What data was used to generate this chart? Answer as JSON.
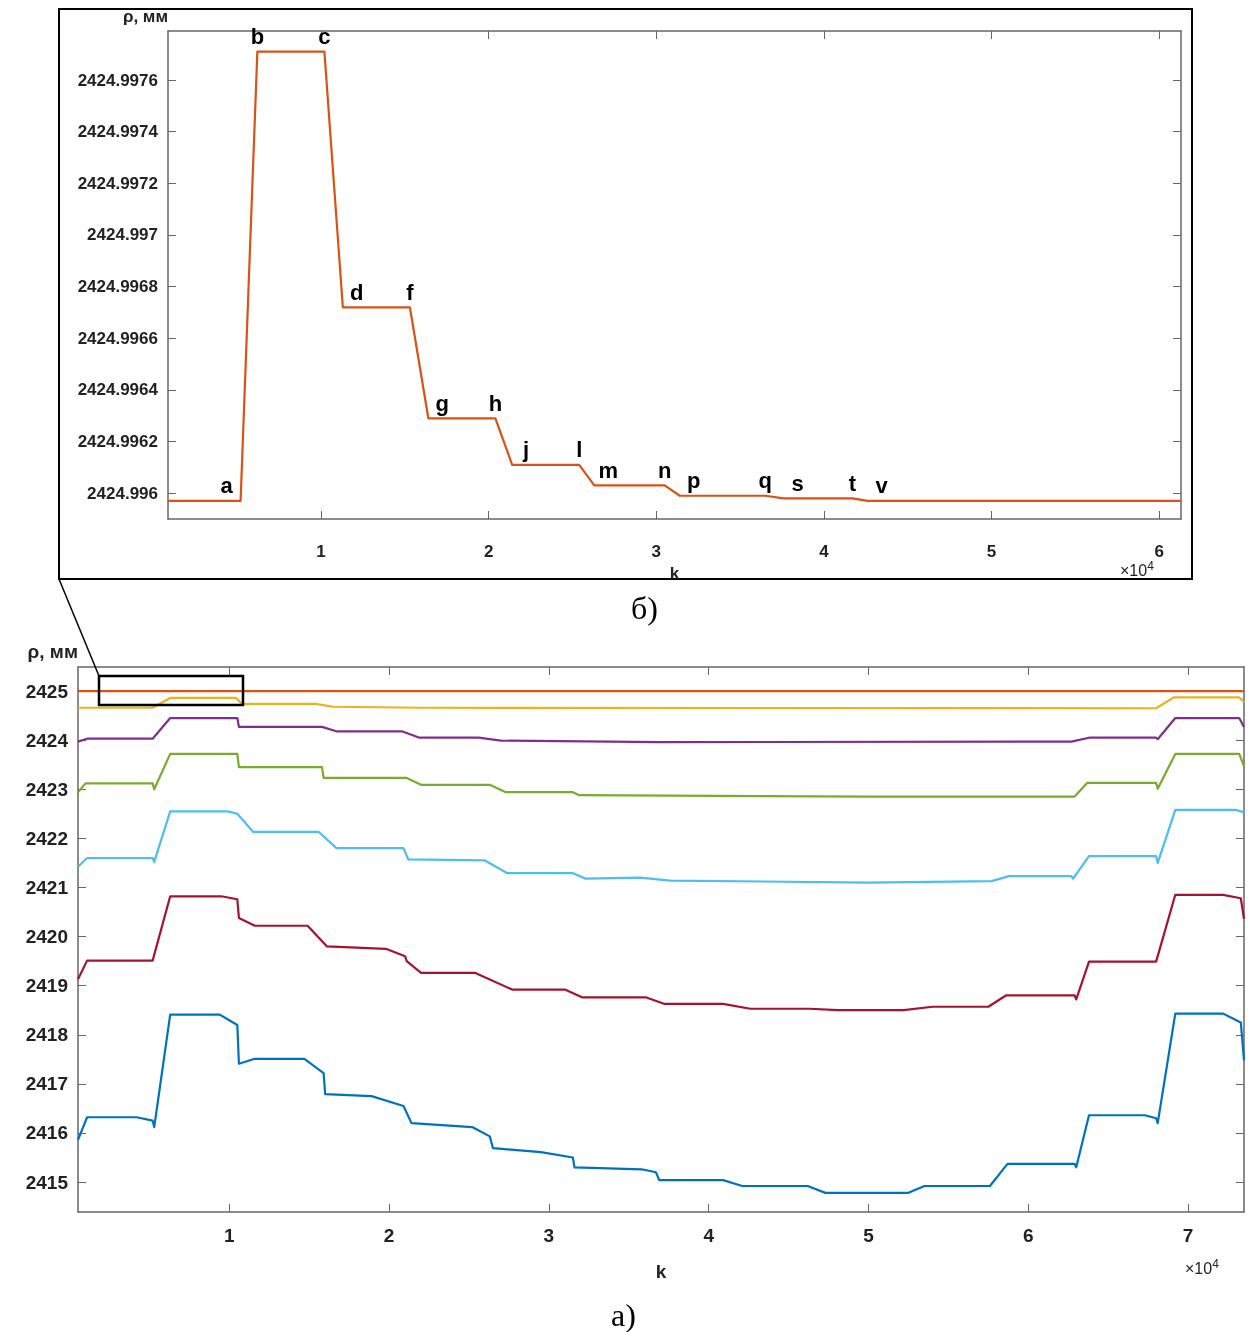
{
  "chart_data": [
    {
      "type": "line",
      "xlabel": "k",
      "ylabel": "ρ, мм",
      "xlim": [
        0.087,
        6.13
      ],
      "xticks": [
        1,
        2,
        3,
        4,
        5,
        6
      ],
      "ylim": [
        2424.9959,
        2424.99779
      ],
      "yticks": [
        2424.996,
        2424.9962,
        2424.9964,
        2424.9966,
        2424.9968,
        2424.997,
        2424.9972,
        2424.9974,
        2424.9976
      ],
      "series": [
        {
          "color": "#d95319",
          "x": [
            0.087,
            0.52,
            0.62,
            1.02,
            1.13,
            1.53,
            1.64,
            2.04,
            2.14,
            2.54,
            2.63,
            3.05,
            3.14,
            3.65,
            3.76,
            4.17,
            4.26,
            6.13
          ],
          "values": [
            2424.99597,
            2424.99597,
            2424.99771,
            2424.99771,
            2424.99672,
            2424.99672,
            2424.99629,
            2424.99629,
            2424.99611,
            2424.99611,
            2424.99603,
            2424.99603,
            2424.99599,
            2424.99599,
            2424.99598,
            2424.99598,
            2424.99597,
            2424.99597
          ]
        }
      ],
      "annotations": [
        "×10$^{4}$",
        {
          "text": "a",
          "x": 0.52,
          "y": 2424.99597
        },
        {
          "text": "b",
          "x": 0.62,
          "y": 2424.99771
        },
        {
          "text": "c",
          "x": 1.02,
          "y": 2424.99771
        },
        {
          "text": "d",
          "x": 1.13,
          "y": 2424.99672
        },
        {
          "text": "f",
          "x": 1.53,
          "y": 2424.99672
        },
        {
          "text": "g",
          "x": 1.64,
          "y": 2424.99629
        },
        {
          "text": "h",
          "x": 2.04,
          "y": 2424.99629
        },
        {
          "text": "j",
          "x": 2.14,
          "y": 2424.99611
        },
        {
          "text": "l",
          "x": 2.54,
          "y": 2424.99611
        },
        {
          "text": "m",
          "x": 2.63,
          "y": 2424.99603
        },
        {
          "text": "n",
          "x": 3.05,
          "y": 2424.99603
        },
        {
          "text": "p",
          "x": 3.14,
          "y": 2424.99599
        },
        {
          "text": "q",
          "x": 3.65,
          "y": 2424.99599
        },
        {
          "text": "s",
          "x": 3.76,
          "y": 2424.99598
        },
        {
          "text": "t",
          "x": 4.17,
          "y": 2424.99598
        },
        {
          "text": "v",
          "x": 4.26,
          "y": 2424.99597
        },
        "б)"
      ]
    },
    {
      "type": "line",
      "xlabel": "k",
      "ylabel": "ρ, мм",
      "xlim": [
        0.053,
        7.35
      ],
      "xticks": [
        1,
        2,
        3,
        4,
        5,
        6,
        7
      ],
      "ylim": [
        2414.39,
        2425.49
      ],
      "yticks": [
        2415,
        2416,
        2417,
        2418,
        2419,
        2420,
        2421,
        2422,
        2423,
        2424,
        2425
      ],
      "series": [
        {
          "color": "#d95319",
          "x": [
            0.053,
            7.35
          ],
          "values": [
            2425,
            2425
          ]
        },
        {
          "color": "#edb120",
          "x": [
            0.053,
            0.52,
            0.63,
            1.04,
            1.08,
            1.54,
            1.65,
            2.2,
            6.8,
            6.91,
            7.32,
            7.35
          ],
          "values": [
            2424.66,
            2424.66,
            2424.86,
            2424.86,
            2424.74,
            2424.74,
            2424.68,
            2424.66,
            2424.65,
            2424.87,
            2424.87,
            2424.78
          ]
        },
        {
          "color": "#7e2f8e",
          "x": [
            0.053,
            0.11,
            0.52,
            0.63,
            1.05,
            1.06,
            1.58,
            1.67,
            2.08,
            2.19,
            2.56,
            2.7,
            3.7,
            6.27,
            6.38,
            6.8,
            6.81,
            6.92,
            7.32,
            7.35
          ],
          "values": [
            2423.97,
            2424.03,
            2424.03,
            2424.45,
            2424.45,
            2424.27,
            2424.27,
            2424.18,
            2424.18,
            2424.05,
            2424.05,
            2423.99,
            2423.96,
            2423.97,
            2424.05,
            2424.05,
            2424.02,
            2424.45,
            2424.45,
            2424.27
          ]
        },
        {
          "color": "#77ac30",
          "x": [
            0.053,
            0.1,
            0.52,
            0.53,
            0.63,
            1.05,
            1.06,
            1.58,
            1.59,
            2.11,
            2.2,
            2.63,
            2.73,
            3.15,
            3.19,
            5.0,
            6.29,
            6.37,
            6.8,
            6.81,
            6.92,
            7.32,
            7.35
          ],
          "values": [
            2422.94,
            2423.12,
            2423.12,
            2423.0,
            2423.72,
            2423.72,
            2423.45,
            2423.45,
            2423.23,
            2423.23,
            2423.09,
            2423.09,
            2422.94,
            2422.94,
            2422.88,
            2422.85,
            2422.85,
            2423.13,
            2423.13,
            2423.01,
            2423.72,
            2423.72,
            2423.47
          ]
        },
        {
          "color": "#4dbeee",
          "x": [
            0.053,
            0.11,
            0.52,
            0.53,
            0.63,
            0.99,
            1.05,
            1.15,
            1.56,
            1.67,
            2.09,
            2.12,
            2.6,
            2.74,
            3.15,
            3.23,
            3.57,
            3.76,
            5.0,
            5.77,
            5.88,
            6.27,
            6.28,
            6.38,
            6.8,
            6.81,
            6.92,
            7.3,
            7.35
          ],
          "values": [
            2421.42,
            2421.6,
            2421.6,
            2421.52,
            2422.55,
            2422.55,
            2422.5,
            2422.13,
            2422.13,
            2421.8,
            2421.8,
            2421.57,
            2421.55,
            2421.29,
            2421.29,
            2421.18,
            2421.2,
            2421.14,
            2421.1,
            2421.13,
            2421.23,
            2421.23,
            2421.18,
            2421.64,
            2421.64,
            2421.5,
            2422.58,
            2422.58,
            2422.53
          ]
        },
        {
          "color": "#a2142f",
          "x": [
            0.053,
            0.11,
            0.52,
            0.63,
            0.95,
            1.05,
            1.06,
            1.16,
            1.49,
            1.61,
            1.98,
            2.1,
            2.11,
            2.2,
            2.54,
            2.77,
            3.1,
            3.21,
            3.61,
            3.72,
            4.09,
            4.26,
            4.63,
            4.81,
            5.22,
            5.4,
            5.75,
            5.86,
            6.29,
            6.3,
            6.38,
            6.8,
            6.92,
            7.22,
            7.33,
            7.35
          ],
          "values": [
            2419.13,
            2419.51,
            2419.51,
            2420.82,
            2420.82,
            2420.76,
            2420.38,
            2420.22,
            2420.22,
            2419.8,
            2419.75,
            2419.6,
            2419.5,
            2419.26,
            2419.26,
            2418.92,
            2418.92,
            2418.76,
            2418.76,
            2418.63,
            2418.63,
            2418.53,
            2418.53,
            2418.5,
            2418.5,
            2418.57,
            2418.57,
            2418.8,
            2418.8,
            2418.72,
            2419.49,
            2419.49,
            2420.85,
            2420.85,
            2420.78,
            2420.36
          ]
        },
        {
          "color": "#0072bd",
          "x": [
            0.053,
            0.11,
            0.42,
            0.52,
            0.53,
            0.63,
            0.94,
            1.05,
            1.06,
            1.16,
            1.47,
            1.59,
            1.6,
            1.89,
            2.09,
            2.14,
            2.52,
            2.63,
            2.65,
            2.95,
            3.15,
            3.16,
            3.58,
            3.67,
            3.69,
            4.09,
            4.21,
            4.62,
            4.73,
            5.25,
            5.35,
            5.76,
            5.87,
            6.29,
            6.3,
            6.38,
            6.73,
            6.8,
            6.81,
            6.92,
            7.22,
            7.33,
            7.35
          ],
          "values": [
            2415.86,
            2416.32,
            2416.32,
            2416.25,
            2416.12,
            2418.41,
            2418.41,
            2418.2,
            2417.41,
            2417.51,
            2417.51,
            2417.22,
            2416.79,
            2416.75,
            2416.55,
            2416.2,
            2416.12,
            2415.93,
            2415.69,
            2415.61,
            2415.5,
            2415.3,
            2415.26,
            2415.2,
            2415.04,
            2415.04,
            2414.92,
            2414.92,
            2414.78,
            2414.78,
            2414.92,
            2414.92,
            2415.37,
            2415.37,
            2415.3,
            2416.36,
            2416.36,
            2416.3,
            2416.2,
            2418.43,
            2418.43,
            2418.25,
            2417.48
          ]
        }
      ],
      "annotations": [
        "×10$^{4}$",
        "а)"
      ]
    }
  ]
}
